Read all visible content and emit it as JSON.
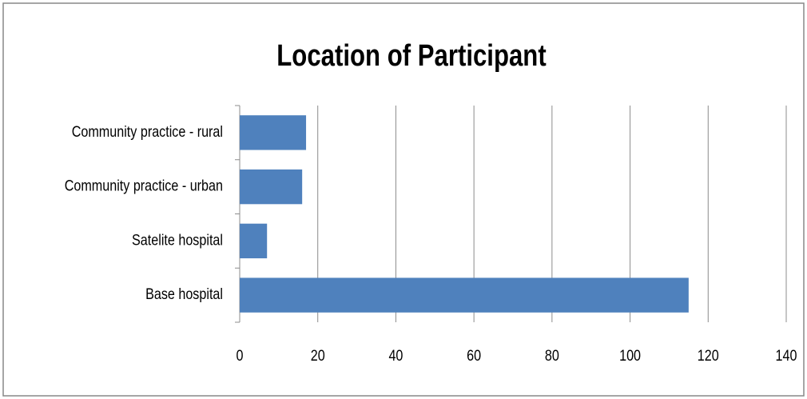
{
  "chart_data": {
    "type": "bar",
    "orientation": "horizontal",
    "title": "Location of Participant",
    "categories": [
      "Community practice - rural",
      "Community practice - urban",
      "Satelite hospital",
      "Base hospital"
    ],
    "values": [
      17,
      16,
      7,
      115
    ],
    "color": "#4f81bd",
    "xlim": [
      0,
      140
    ],
    "xticks": [
      0,
      20,
      40,
      60,
      80,
      100,
      120,
      140
    ],
    "grid": true
  }
}
